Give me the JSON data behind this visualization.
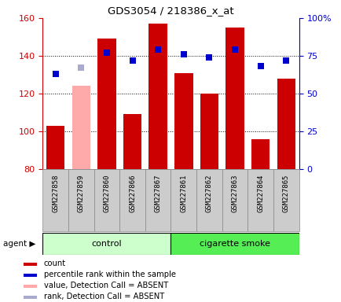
{
  "title": "GDS3054 / 218386_x_at",
  "samples": [
    "GSM227858",
    "GSM227859",
    "GSM227860",
    "GSM227866",
    "GSM227867",
    "GSM227861",
    "GSM227862",
    "GSM227863",
    "GSM227864",
    "GSM227865"
  ],
  "groups": [
    "control",
    "control",
    "control",
    "control",
    "control",
    "cigarette smoke",
    "cigarette smoke",
    "cigarette smoke",
    "cigarette smoke",
    "cigarette smoke"
  ],
  "counts": [
    103,
    null,
    149,
    109,
    157,
    131,
    120,
    155,
    96,
    128
  ],
  "absent_counts": [
    null,
    124,
    null,
    null,
    null,
    null,
    null,
    null,
    null,
    null
  ],
  "ranks_pct": [
    63,
    null,
    77,
    72,
    79,
    76,
    74,
    79,
    68,
    72
  ],
  "absent_ranks_pct": [
    null,
    67,
    null,
    null,
    null,
    null,
    null,
    null,
    null,
    null
  ],
  "ylim_left": [
    80,
    160
  ],
  "ylim_right": [
    0,
    100
  ],
  "yticks_left": [
    80,
    100,
    120,
    140,
    160
  ],
  "yticks_right": [
    0,
    25,
    50,
    75,
    100
  ],
  "ytick_labels_right": [
    "0",
    "25",
    "50",
    "75",
    "100%"
  ],
  "left_axis_color": "#cc0000",
  "right_axis_color": "#0000cc",
  "bar_color_present": "#cc0000",
  "bar_color_absent": "#ffaaaa",
  "rank_color_present": "#0000cc",
  "rank_color_absent": "#aaaacc",
  "control_color": "#ccffcc",
  "smoke_color": "#55ee55",
  "tick_box_color": "#cccccc",
  "tick_box_border": "#888888",
  "grid_lines": [
    100,
    120,
    140
  ],
  "group_label": "agent",
  "legend_items": [
    {
      "color": "#cc0000",
      "label": "count"
    },
    {
      "color": "#0000cc",
      "label": "percentile rank within the sample"
    },
    {
      "color": "#ffaaaa",
      "label": "value, Detection Call = ABSENT"
    },
    {
      "color": "#aaaacc",
      "label": "rank, Detection Call = ABSENT"
    }
  ],
  "n_control": 5,
  "n_smoke": 5
}
